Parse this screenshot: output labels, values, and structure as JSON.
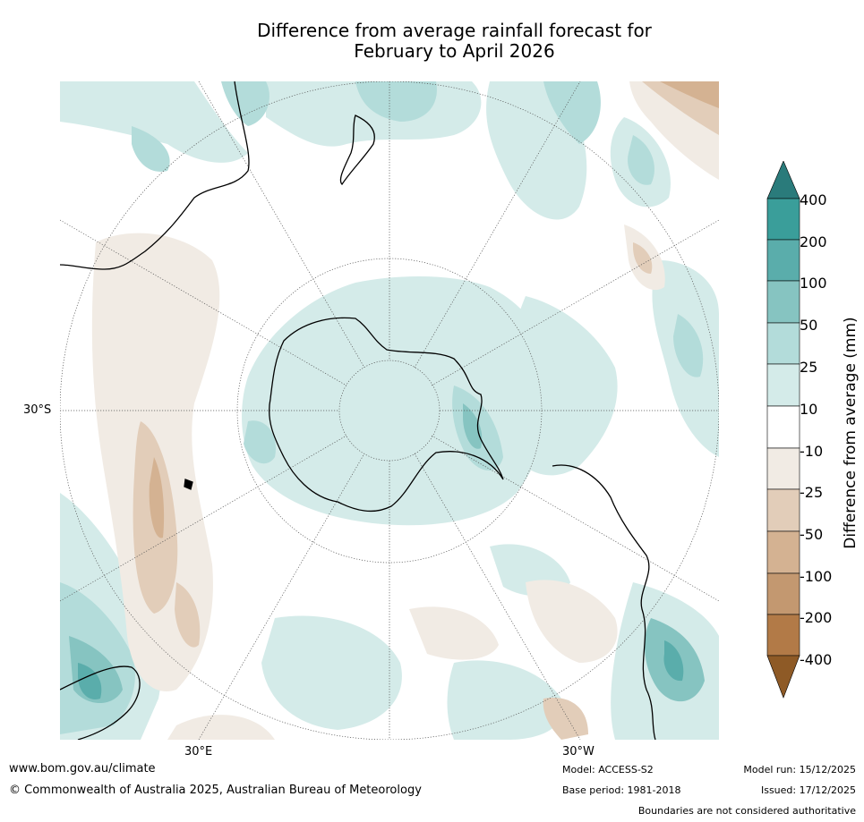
{
  "title": {
    "line1": "Difference from average rainfall forecast for",
    "line2": "February to April 2026"
  },
  "map": {
    "lat_labels": {
      "left": "30°S",
      "bottom_left": "30°E",
      "bottom_right": "30°W"
    },
    "colors": {
      "wet_400": "#2a7b7b",
      "wet_200": "#3a9e9a",
      "wet_100": "#5aadab",
      "wet_50": "#86c4c1",
      "wet_25": "#b3dcda",
      "wet_10": "#d4ebe9",
      "neutral": "#ffffff",
      "dry_10": "#f1ebe4",
      "dry_25": "#e2cdb9",
      "dry_50": "#d4b292",
      "dry_100": "#c39870",
      "dry_200": "#b27a47",
      "dry_400": "#8e5a26"
    }
  },
  "colorbar": {
    "ticks": [
      "400",
      "200",
      "100",
      "50",
      "25",
      "10",
      "-10",
      "-25",
      "-50",
      "-100",
      "-200",
      "-400"
    ],
    "label": "Difference from average (mm)"
  },
  "footer": {
    "url": "www.bom.gov.au/climate",
    "copyright": "© Commonwealth of Australia 2025, Australian Bureau of Meteorology",
    "model": "Model: ACCESS-S2",
    "base_period": "Base period: 1981-2018",
    "model_run": "Model run: 15/12/2025",
    "issued": "Issued: 17/12/2025",
    "disclaimer": "Boundaries are not considered authoritative"
  }
}
